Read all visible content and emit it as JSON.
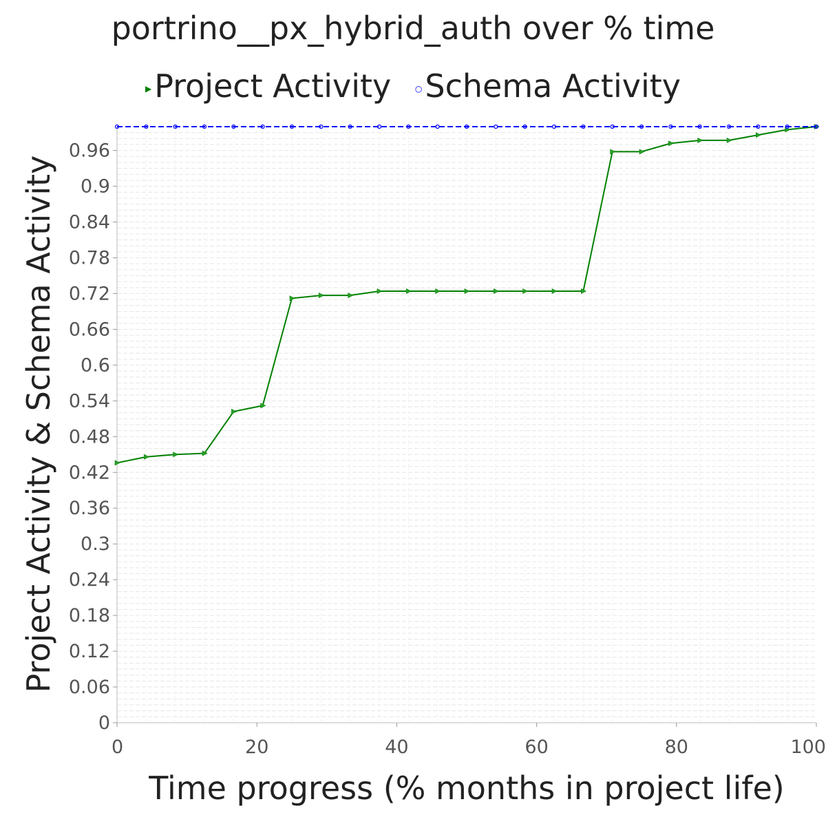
{
  "chart_data": {
    "type": "line",
    "title": "portrino__px_hybrid_auth over % time",
    "xlabel": "Time progress (% months in project life)",
    "ylabel": "Project Activity & Schema Activity",
    "xlim": [
      0,
      100
    ],
    "ylim": [
      0,
      1.0
    ],
    "x_ticks": [
      "0",
      "20",
      "40",
      "60",
      "80",
      "100"
    ],
    "y_ticks": [
      "0",
      "0.06",
      "0.12",
      "0.18",
      "0.24",
      "0.3",
      "0.36",
      "0.42",
      "0.48",
      "0.54",
      "0.6",
      "0.66",
      "0.72",
      "0.78",
      "0.84",
      "0.9",
      "0.96"
    ],
    "grid": true,
    "legend_position": "top",
    "series": [
      {
        "name": "Project Activity",
        "color": "#008000",
        "marker": "triangle-right",
        "x": [
          0,
          4.17,
          8.33,
          12.5,
          16.67,
          20.83,
          25,
          29.17,
          33.33,
          37.5,
          41.67,
          45.83,
          50,
          54.17,
          58.33,
          62.5,
          66.67,
          70.83,
          75,
          79.17,
          83.33,
          87.5,
          91.67,
          95.83,
          100
        ],
        "y": [
          0.436,
          0.446,
          0.45,
          0.452,
          0.522,
          0.532,
          0.712,
          0.717,
          0.717,
          0.724,
          0.724,
          0.724,
          0.724,
          0.724,
          0.724,
          0.724,
          0.724,
          0.958,
          0.958,
          0.972,
          0.977,
          0.977,
          0.986,
          0.995,
          1.0
        ]
      },
      {
        "name": "Schema Activity",
        "color": "#0000ff",
        "marker": "circle",
        "x": [
          0,
          4.17,
          8.33,
          12.5,
          16.67,
          20.83,
          25,
          29.17,
          33.33,
          37.5,
          41.67,
          45.83,
          50,
          54.17,
          58.33,
          62.5,
          66.67,
          70.83,
          75,
          79.17,
          83.33,
          87.5,
          91.67,
          95.83,
          100
        ],
        "y": [
          1,
          1,
          1,
          1,
          1,
          1,
          1,
          1,
          1,
          1,
          1,
          1,
          1,
          1,
          1,
          1,
          1,
          1,
          1,
          1,
          1,
          1,
          1,
          1,
          1
        ]
      }
    ]
  }
}
